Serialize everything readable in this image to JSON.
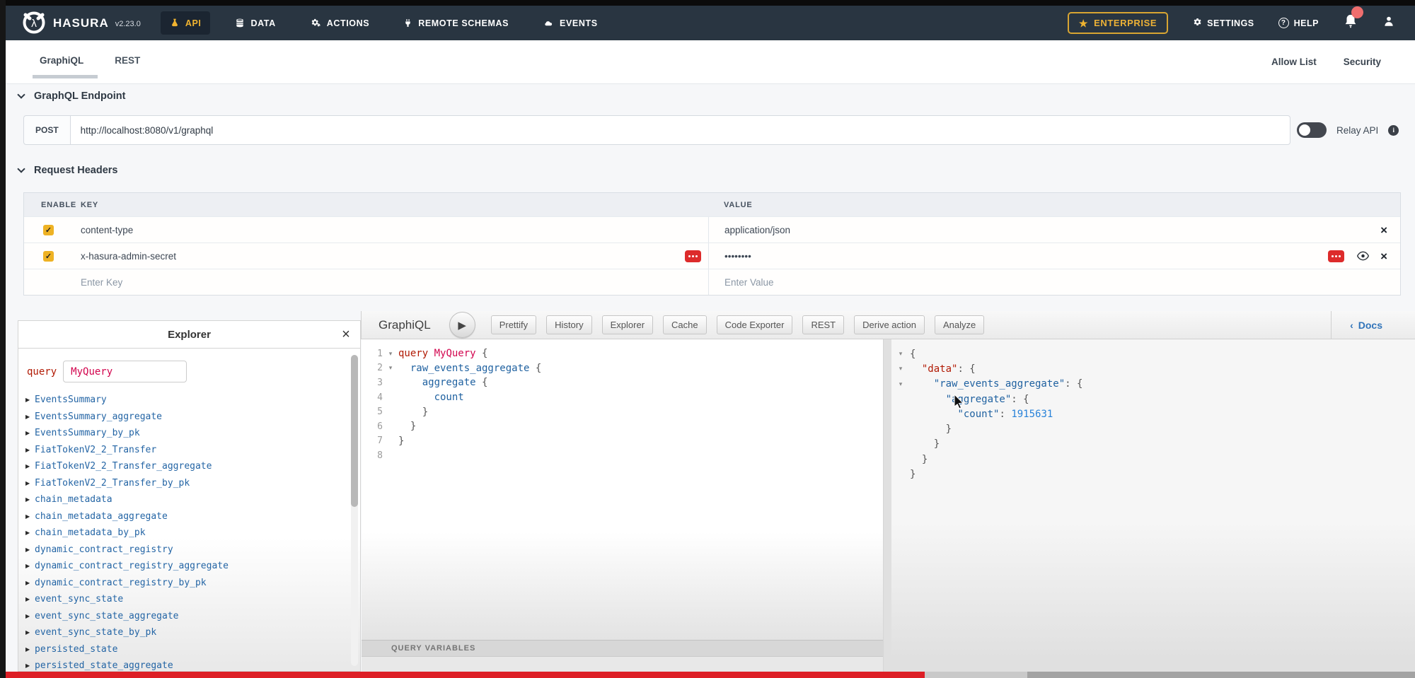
{
  "navbar": {
    "brand": "HASURA",
    "version": "v2.23.0",
    "items": [
      {
        "label": "API",
        "icon": "flask-icon",
        "active": true
      },
      {
        "label": "DATA",
        "icon": "database-icon",
        "active": false
      },
      {
        "label": "ACTIONS",
        "icon": "cogs-icon",
        "active": false
      },
      {
        "label": "REMOTE SCHEMAS",
        "icon": "plug-icon",
        "active": false
      },
      {
        "label": "EVENTS",
        "icon": "cloud-icon",
        "active": false
      }
    ],
    "enterprise_label": "ENTERPRISE",
    "settings_label": "SETTINGS",
    "help_label": "HELP"
  },
  "tabs": {
    "graphiql": "GraphiQL",
    "rest": "REST",
    "active": "GraphiQL",
    "allow_list": "Allow List",
    "security": "Security"
  },
  "endpoint": {
    "section_title": "GraphQL Endpoint",
    "method": "POST",
    "url": "http://localhost:8080/v1/graphql",
    "relay_label": "Relay API"
  },
  "headers": {
    "section_title": "Request Headers",
    "columns": {
      "enable": "ENABLE",
      "key": "KEY",
      "value": "VALUE"
    },
    "rows": [
      {
        "enabled": true,
        "key": "content-type",
        "value": "application/json",
        "masked": false
      },
      {
        "enabled": true,
        "key": "x-hasura-admin-secret",
        "value": "••••••••",
        "masked": true
      }
    ],
    "new_row": {
      "key_placeholder": "Enter Key",
      "value_placeholder": "Enter Value"
    }
  },
  "explorer": {
    "title": "Explorer",
    "query_keyword": "query",
    "query_name": "MyQuery",
    "fields": [
      "EventsSummary",
      "EventsSummary_aggregate",
      "EventsSummary_by_pk",
      "FiatTokenV2_2_Transfer",
      "FiatTokenV2_2_Transfer_aggregate",
      "FiatTokenV2_2_Transfer_by_pk",
      "chain_metadata",
      "chain_metadata_aggregate",
      "chain_metadata_by_pk",
      "dynamic_contract_registry",
      "dynamic_contract_registry_aggregate",
      "dynamic_contract_registry_by_pk",
      "event_sync_state",
      "event_sync_state_aggregate",
      "event_sync_state_by_pk",
      "persisted_state",
      "persisted_state_aggregate"
    ]
  },
  "graphiql": {
    "title": "GraphiQL",
    "toolbar": [
      "Prettify",
      "History",
      "Explorer",
      "Cache",
      "Code Exporter",
      "REST",
      "Derive action",
      "Analyze"
    ],
    "docs_label": "Docs",
    "variables_title": "QUERY VARIABLES",
    "query": {
      "lines": [
        {
          "n": "1",
          "fold": true,
          "tokens": [
            [
              "kw",
              "query"
            ],
            [
              "pl",
              " "
            ],
            [
              "def",
              "MyQuery"
            ],
            [
              "pl",
              " {"
            ]
          ]
        },
        {
          "n": "2",
          "fold": true,
          "tokens": [
            [
              "pl",
              "  "
            ],
            [
              "prop",
              "raw_events_aggregate"
            ],
            [
              "pl",
              " {"
            ]
          ]
        },
        {
          "n": "3",
          "fold": false,
          "tokens": [
            [
              "pl",
              "    "
            ],
            [
              "prop",
              "aggregate"
            ],
            [
              "pl",
              " {"
            ]
          ]
        },
        {
          "n": "4",
          "fold": false,
          "tokens": [
            [
              "pl",
              "      "
            ],
            [
              "prop",
              "count"
            ]
          ]
        },
        {
          "n": "5",
          "fold": false,
          "tokens": [
            [
              "pl",
              "    }"
            ]
          ]
        },
        {
          "n": "6",
          "fold": false,
          "tokens": [
            [
              "pl",
              "  }"
            ]
          ]
        },
        {
          "n": "7",
          "fold": false,
          "tokens": [
            [
              "pl",
              "}"
            ]
          ]
        },
        {
          "n": "8",
          "fold": false,
          "tokens": []
        }
      ]
    },
    "response": {
      "count_value": 1915631,
      "lines": [
        {
          "fold": true,
          "tokens": [
            [
              "pl",
              "{"
            ]
          ]
        },
        {
          "fold": true,
          "tokens": [
            [
              "pl",
              "  "
            ],
            [
              "keyr",
              "\"data\""
            ],
            [
              "pl",
              ": {"
            ]
          ]
        },
        {
          "fold": true,
          "tokens": [
            [
              "pl",
              "    "
            ],
            [
              "keyb",
              "\"raw_events_aggregate\""
            ],
            [
              "pl",
              ": {"
            ]
          ]
        },
        {
          "fold": false,
          "tokens": [
            [
              "pl",
              "      "
            ],
            [
              "keyb",
              "\"aggregate\""
            ],
            [
              "pl",
              ": {"
            ]
          ]
        },
        {
          "fold": false,
          "tokens": [
            [
              "pl",
              "        "
            ],
            [
              "keyb",
              "\"count\""
            ],
            [
              "pl",
              ": "
            ],
            [
              "num",
              "1915631"
            ]
          ]
        },
        {
          "fold": false,
          "tokens": [
            [
              "pl",
              "      }"
            ]
          ]
        },
        {
          "fold": false,
          "tokens": [
            [
              "pl",
              "    }"
            ]
          ]
        },
        {
          "fold": false,
          "tokens": [
            [
              "pl",
              "  }"
            ]
          ]
        },
        {
          "fold": false,
          "tokens": [
            [
              "pl",
              "}"
            ]
          ]
        }
      ]
    }
  },
  "colors": {
    "navbar_bg": "#293541",
    "hasura_yellow": "#efb330",
    "danger_red": "#dd2b2b",
    "field_blue": "#1f61a0",
    "keyword_red": "#b11a04",
    "progress_red": "#dd1f26"
  },
  "player_bar": {
    "progress_percent": 65
  }
}
